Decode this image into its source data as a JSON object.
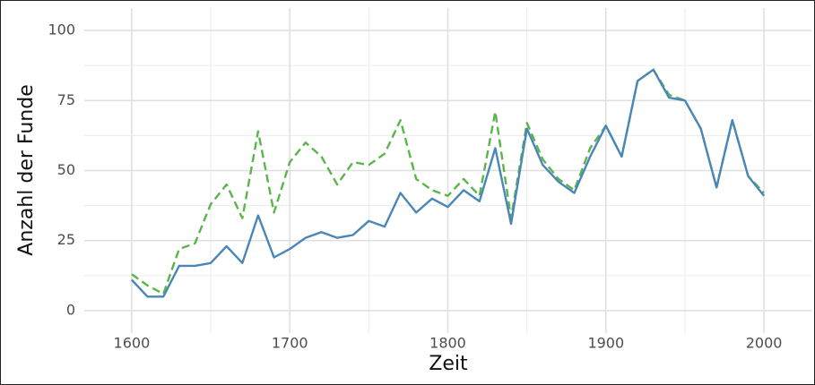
{
  "chart_data": {
    "type": "line",
    "x_label": "Zeit",
    "y_label": "Anzahl der Funde",
    "x": [
      1600,
      1610,
      1620,
      1630,
      1640,
      1650,
      1660,
      1670,
      1680,
      1690,
      1700,
      1710,
      1720,
      1730,
      1740,
      1750,
      1760,
      1770,
      1780,
      1790,
      1800,
      1810,
      1820,
      1830,
      1840,
      1850,
      1860,
      1870,
      1880,
      1890,
      1900,
      1910,
      1920,
      1930,
      1940,
      1950,
      1960,
      1970,
      1980,
      1990,
      2000
    ],
    "series": [
      {
        "color": "#5ab54a",
        "dashed": true,
        "values": [
          13,
          9,
          6,
          22,
          24,
          38,
          45,
          33,
          64,
          35,
          53,
          60,
          55,
          45,
          53,
          52,
          56,
          68,
          47,
          43,
          41,
          47,
          41,
          71,
          33,
          67,
          54,
          47,
          43,
          58,
          66,
          55,
          82,
          86,
          77,
          75,
          65,
          44,
          68,
          48,
          42
        ]
      },
      {
        "color": "#4a87b8",
        "dashed": false,
        "values": [
          11,
          5,
          5,
          16,
          16,
          17,
          23,
          17,
          34,
          19,
          22,
          26,
          28,
          26,
          27,
          32,
          30,
          42,
          35,
          40,
          37,
          43,
          39,
          58,
          31,
          65,
          52,
          46,
          42,
          55,
          66,
          55,
          82,
          86,
          76,
          75,
          65,
          44,
          68,
          48,
          41
        ]
      }
    ],
    "xlim": [
      1570,
      2030
    ],
    "xticks": [
      1600,
      1700,
      1800,
      1900,
      2000
    ],
    "ylim": [
      -8,
      108
    ],
    "yticks": [
      0,
      25,
      50,
      75,
      100
    ],
    "grid": true
  }
}
